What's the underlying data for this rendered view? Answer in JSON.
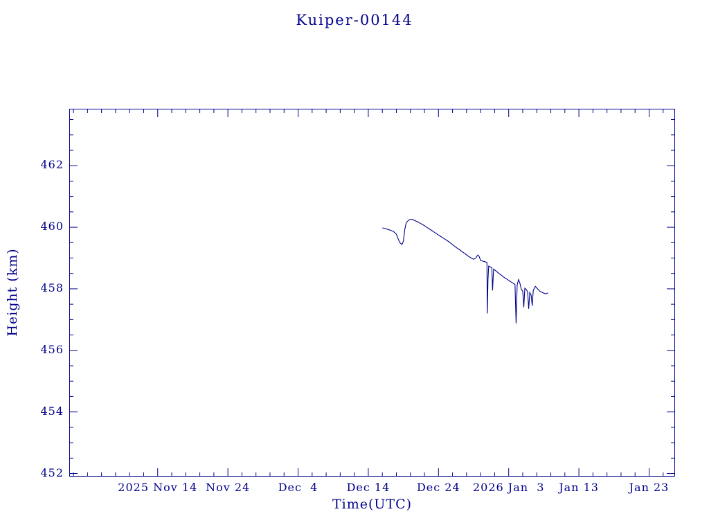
{
  "colors": {
    "accent": "#00008B",
    "line": "#00008B"
  },
  "chart_data": {
    "type": "line",
    "title": "Kuiper-00144",
    "xlabel": "Time(UTC)",
    "ylabel": "Height (km)",
    "x_unit": "days since 2025 Nov 14 (UTC)",
    "xlim": [
      -12.6,
      73.7
    ],
    "ylim": [
      451.9,
      463.85
    ],
    "x_ticks": [
      {
        "day": 0,
        "label": "2025 Nov 14"
      },
      {
        "day": 10,
        "label": "Nov 24"
      },
      {
        "day": 20,
        "label": "Dec  4"
      },
      {
        "day": 30,
        "label": "Dec 14"
      },
      {
        "day": 40,
        "label": "Dec 24"
      },
      {
        "day": 50,
        "label": "2026 Jan  3"
      },
      {
        "day": 60,
        "label": "Jan 13"
      },
      {
        "day": 70,
        "label": "Jan 23"
      }
    ],
    "y_ticks": [
      452,
      454,
      456,
      458,
      460,
      462
    ],
    "x_minor_step_days": 2,
    "y_minor_step_km": 0.5,
    "grid": false,
    "legend": "none",
    "series": [
      {
        "name": "height",
        "points": [
          [
            32.0,
            459.98
          ],
          [
            32.4,
            459.96
          ],
          [
            32.8,
            459.93
          ],
          [
            33.2,
            459.9
          ],
          [
            33.6,
            459.86
          ],
          [
            34.0,
            459.78
          ],
          [
            34.2,
            459.65
          ],
          [
            34.5,
            459.5
          ],
          [
            34.8,
            459.44
          ],
          [
            35.0,
            459.55
          ],
          [
            35.2,
            459.92
          ],
          [
            35.4,
            460.15
          ],
          [
            35.8,
            460.24
          ],
          [
            36.2,
            460.26
          ],
          [
            36.6,
            460.22
          ],
          [
            37.0,
            460.18
          ],
          [
            37.4,
            460.13
          ],
          [
            37.8,
            460.08
          ],
          [
            38.2,
            460.02
          ],
          [
            38.6,
            459.96
          ],
          [
            39.0,
            459.9
          ],
          [
            39.4,
            459.84
          ],
          [
            39.8,
            459.78
          ],
          [
            40.2,
            459.72
          ],
          [
            40.6,
            459.66
          ],
          [
            41.0,
            459.6
          ],
          [
            41.4,
            459.54
          ],
          [
            41.8,
            459.47
          ],
          [
            42.2,
            459.4
          ],
          [
            42.6,
            459.33
          ],
          [
            43.0,
            459.27
          ],
          [
            43.4,
            459.2
          ],
          [
            43.8,
            459.14
          ],
          [
            44.2,
            459.07
          ],
          [
            44.6,
            459.01
          ],
          [
            45.0,
            458.96
          ],
          [
            45.3,
            459.0
          ],
          [
            45.6,
            459.1
          ],
          [
            45.8,
            459.05
          ],
          [
            46.0,
            458.92
          ],
          [
            46.3,
            458.9
          ],
          [
            46.6,
            458.88
          ],
          [
            46.9,
            458.86
          ],
          [
            46.95,
            457.2
          ],
          [
            47.05,
            458.3
          ],
          [
            47.15,
            458.74
          ],
          [
            47.4,
            458.71
          ],
          [
            47.6,
            458.68
          ],
          [
            47.7,
            457.95
          ],
          [
            47.85,
            458.64
          ],
          [
            48.1,
            458.6
          ],
          [
            48.5,
            458.52
          ],
          [
            48.9,
            458.45
          ],
          [
            49.3,
            458.38
          ],
          [
            49.7,
            458.32
          ],
          [
            50.1,
            458.26
          ],
          [
            50.5,
            458.2
          ],
          [
            50.9,
            458.14
          ],
          [
            51.05,
            456.88
          ],
          [
            51.2,
            458.12
          ],
          [
            51.4,
            458.3
          ],
          [
            51.6,
            458.18
          ],
          [
            51.8,
            457.98
          ],
          [
            52.0,
            457.92
          ],
          [
            52.15,
            457.4
          ],
          [
            52.3,
            458.02
          ],
          [
            52.5,
            457.98
          ],
          [
            52.7,
            457.9
          ],
          [
            52.85,
            457.35
          ],
          [
            53.0,
            457.88
          ],
          [
            53.2,
            457.8
          ],
          [
            53.35,
            457.45
          ],
          [
            53.5,
            457.95
          ],
          [
            53.8,
            458.08
          ],
          [
            54.1,
            458.0
          ],
          [
            54.4,
            457.93
          ],
          [
            54.7,
            457.89
          ],
          [
            55.0,
            457.86
          ],
          [
            55.3,
            457.84
          ],
          [
            55.6,
            457.87
          ]
        ]
      }
    ]
  }
}
